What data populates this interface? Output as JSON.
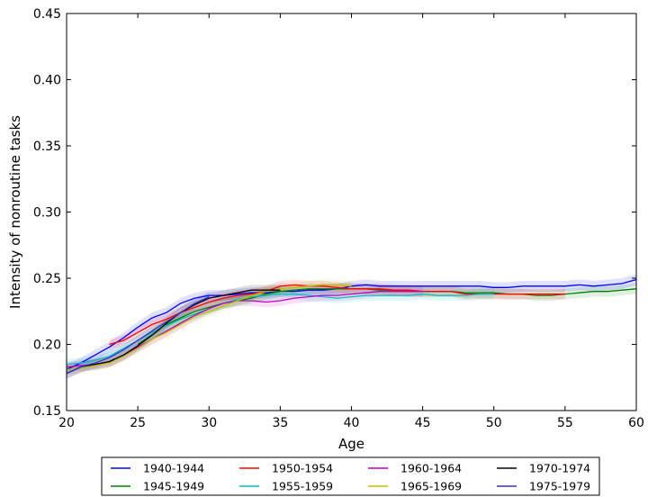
{
  "chart_data": {
    "type": "line",
    "title": "",
    "xlabel": "Age",
    "ylabel": "Intensity of nonroutine tasks",
    "xlim": [
      20,
      60
    ],
    "ylim": [
      0.15,
      0.45
    ],
    "xticks": [
      "20",
      "25",
      "30",
      "35",
      "40",
      "45",
      "50",
      "55",
      "60"
    ],
    "yticks": [
      "0.15",
      "0.20",
      "0.25",
      "0.30",
      "0.35",
      "0.40",
      "0.45"
    ],
    "grid": false,
    "legend_position": "bottom-outside",
    "legend_columns": 4,
    "series": [
      {
        "name": "1940-1944",
        "color": "#0000ff",
        "x": [
          20,
          21,
          22,
          23,
          24,
          25,
          26,
          27,
          28,
          29,
          30,
          31,
          32,
          33,
          34,
          35,
          36,
          37,
          38,
          39,
          40,
          41,
          42,
          43,
          44,
          45,
          46,
          47,
          48,
          49,
          50,
          51,
          52,
          53,
          54,
          55,
          56,
          57,
          58,
          59,
          60
        ],
        "y": [
          0.181,
          0.186,
          0.192,
          0.198,
          0.205,
          0.213,
          0.22,
          0.224,
          0.231,
          0.235,
          0.237,
          0.237,
          0.238,
          0.239,
          0.239,
          0.24,
          0.24,
          0.241,
          0.241,
          0.242,
          0.244,
          0.245,
          0.244,
          0.244,
          0.244,
          0.244,
          0.244,
          0.244,
          0.244,
          0.244,
          0.243,
          0.243,
          0.244,
          0.244,
          0.244,
          0.244,
          0.245,
          0.244,
          0.245,
          0.246,
          0.249
        ]
      },
      {
        "name": "1945-1949",
        "color": "#008000",
        "x": [
          25,
          26,
          27,
          28,
          29,
          30,
          31,
          32,
          33,
          34,
          35,
          36,
          37,
          38,
          39,
          40,
          41,
          42,
          43,
          44,
          45,
          46,
          47,
          48,
          49,
          50,
          51,
          52,
          53,
          54,
          55,
          56,
          57,
          58,
          59,
          60
        ],
        "y": [
          0.2,
          0.207,
          0.215,
          0.22,
          0.225,
          0.228,
          0.231,
          0.233,
          0.235,
          0.238,
          0.24,
          0.241,
          0.242,
          0.242,
          0.242,
          0.242,
          0.242,
          0.241,
          0.241,
          0.24,
          0.24,
          0.24,
          0.24,
          0.239,
          0.239,
          0.239,
          0.238,
          0.238,
          0.237,
          0.237,
          0.238,
          0.239,
          0.24,
          0.24,
          0.241,
          0.242
        ]
      },
      {
        "name": "1950-1954",
        "color": "#ff0000",
        "x": [
          23,
          24,
          25,
          26,
          27,
          28,
          29,
          30,
          31,
          32,
          33,
          34,
          35,
          36,
          37,
          38,
          39,
          40,
          41,
          42,
          43,
          44,
          45,
          46,
          47,
          48,
          49,
          50,
          51,
          52,
          53,
          54,
          55
        ],
        "y": [
          0.2,
          0.203,
          0.209,
          0.215,
          0.219,
          0.224,
          0.228,
          0.232,
          0.235,
          0.237,
          0.238,
          0.24,
          0.244,
          0.245,
          0.244,
          0.244,
          0.243,
          0.242,
          0.242,
          0.242,
          0.241,
          0.241,
          0.24,
          0.24,
          0.24,
          0.238,
          0.238,
          0.238,
          0.238,
          0.238,
          0.238,
          0.238,
          0.238
        ]
      },
      {
        "name": "1955-1959",
        "color": "#00bfbf",
        "x": [
          20,
          21,
          22,
          23,
          24,
          25,
          26,
          27,
          28,
          29,
          30,
          31,
          32,
          33,
          34,
          35,
          36,
          37,
          38,
          39,
          40,
          41,
          42,
          43,
          44,
          45,
          46,
          47,
          48,
          49,
          50
        ],
        "y": [
          0.185,
          0.186,
          0.188,
          0.191,
          0.197,
          0.203,
          0.209,
          0.214,
          0.219,
          0.223,
          0.227,
          0.231,
          0.234,
          0.236,
          0.237,
          0.238,
          0.238,
          0.237,
          0.236,
          0.235,
          0.236,
          0.237,
          0.237,
          0.237,
          0.237,
          0.238,
          0.237,
          0.237,
          0.237,
          0.238,
          0.238
        ]
      },
      {
        "name": "1960-1964",
        "color": "#bf00bf",
        "x": [
          20,
          21,
          22,
          23,
          24,
          25,
          26,
          27,
          28,
          29,
          30,
          31,
          32,
          33,
          34,
          35,
          36,
          37,
          38,
          39,
          40,
          41,
          42,
          43,
          44,
          45
        ],
        "y": [
          0.183,
          0.184,
          0.185,
          0.187,
          0.192,
          0.198,
          0.204,
          0.21,
          0.216,
          0.222,
          0.227,
          0.231,
          0.233,
          0.233,
          0.232,
          0.233,
          0.235,
          0.236,
          0.237,
          0.237,
          0.238,
          0.239,
          0.24,
          0.24,
          0.24,
          0.24
        ]
      },
      {
        "name": "1965-1969",
        "color": "#bfbf00",
        "x": [
          20,
          21,
          22,
          23,
          24,
          25,
          26,
          27,
          28,
          29,
          30,
          31,
          32,
          33,
          34,
          35,
          36,
          37,
          38,
          39,
          40
        ],
        "y": [
          0.181,
          0.182,
          0.184,
          0.186,
          0.191,
          0.197,
          0.204,
          0.209,
          0.215,
          0.221,
          0.225,
          0.229,
          0.233,
          0.237,
          0.24,
          0.242,
          0.243,
          0.244,
          0.245,
          0.245,
          0.244
        ]
      },
      {
        "name": "1970-1974",
        "color": "#000000",
        "x": [
          20,
          21,
          22,
          23,
          24,
          25,
          26,
          27,
          28,
          29,
          30,
          31,
          32,
          33,
          34,
          35
        ],
        "y": [
          0.178,
          0.183,
          0.185,
          0.187,
          0.192,
          0.199,
          0.207,
          0.216,
          0.224,
          0.23,
          0.235,
          0.237,
          0.239,
          0.241,
          0.241,
          0.241
        ]
      },
      {
        "name": "1975-1979",
        "color": "#3333cc",
        "x": [
          20,
          21,
          22,
          23,
          24,
          25,
          26,
          27,
          28,
          29,
          30
        ],
        "y": [
          0.178,
          0.183,
          0.186,
          0.19,
          0.196,
          0.203,
          0.21,
          0.217,
          0.224,
          0.231,
          0.236
        ]
      }
    ]
  }
}
